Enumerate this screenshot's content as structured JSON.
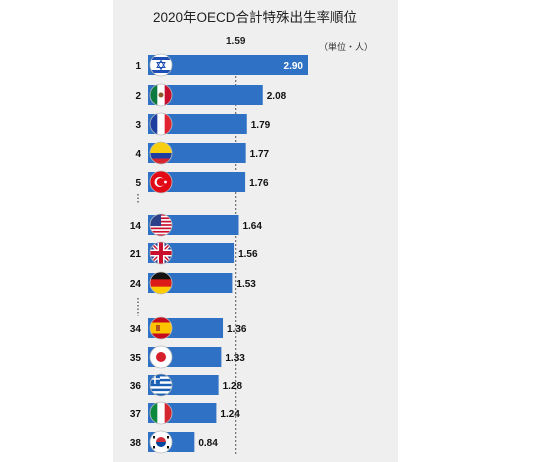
{
  "chart_data": {
    "type": "bar",
    "title": "2020年OECD合計特殊出生率順位",
    "unit": "（単位・人）",
    "reference": {
      "value": 1.59,
      "label": "1.59"
    },
    "xlim": [
      0,
      3.0
    ],
    "grid": false,
    "legend": "none",
    "colors": {
      "bar": "#2f72c5",
      "panel": "#efefef",
      "reference_line": "#555555"
    },
    "gaps_after_index": [
      4,
      7
    ],
    "rows": [
      {
        "rank": "1",
        "country": "Israel",
        "flag": "israel-flag-icon",
        "value": 2.9,
        "label": "2.90"
      },
      {
        "rank": "2",
        "country": "Mexico",
        "flag": "mexico-flag-icon",
        "value": 2.08,
        "label": "2.08"
      },
      {
        "rank": "3",
        "country": "France",
        "flag": "france-flag-icon",
        "value": 1.79,
        "label": "1.79"
      },
      {
        "rank": "4",
        "country": "Colombia",
        "flag": "colombia-flag-icon",
        "value": 1.77,
        "label": "1.77"
      },
      {
        "rank": "5",
        "country": "Turkey",
        "flag": "turkey-flag-icon",
        "value": 1.76,
        "label": "1.76"
      },
      {
        "rank": "14",
        "country": "United States",
        "flag": "usa-flag-icon",
        "value": 1.64,
        "label": "1.64"
      },
      {
        "rank": "21",
        "country": "United Kingdom",
        "flag": "uk-flag-icon",
        "value": 1.56,
        "label": "1.56"
      },
      {
        "rank": "24",
        "country": "Germany",
        "flag": "germany-flag-icon",
        "value": 1.53,
        "label": "1.53"
      },
      {
        "rank": "34",
        "country": "Spain",
        "flag": "spain-flag-icon",
        "value": 1.36,
        "label": "1.36"
      },
      {
        "rank": "35",
        "country": "Japan",
        "flag": "japan-flag-icon",
        "value": 1.33,
        "label": "1.33"
      },
      {
        "rank": "36",
        "country": "Greece",
        "flag": "greece-flag-icon",
        "value": 1.28,
        "label": "1.28"
      },
      {
        "rank": "37",
        "country": "Italy",
        "flag": "italy-flag-icon",
        "value": 1.24,
        "label": "1.24"
      },
      {
        "rank": "38",
        "country": "South Korea",
        "flag": "south-korea-flag-icon",
        "value": 0.84,
        "label": "0.84"
      }
    ]
  }
}
